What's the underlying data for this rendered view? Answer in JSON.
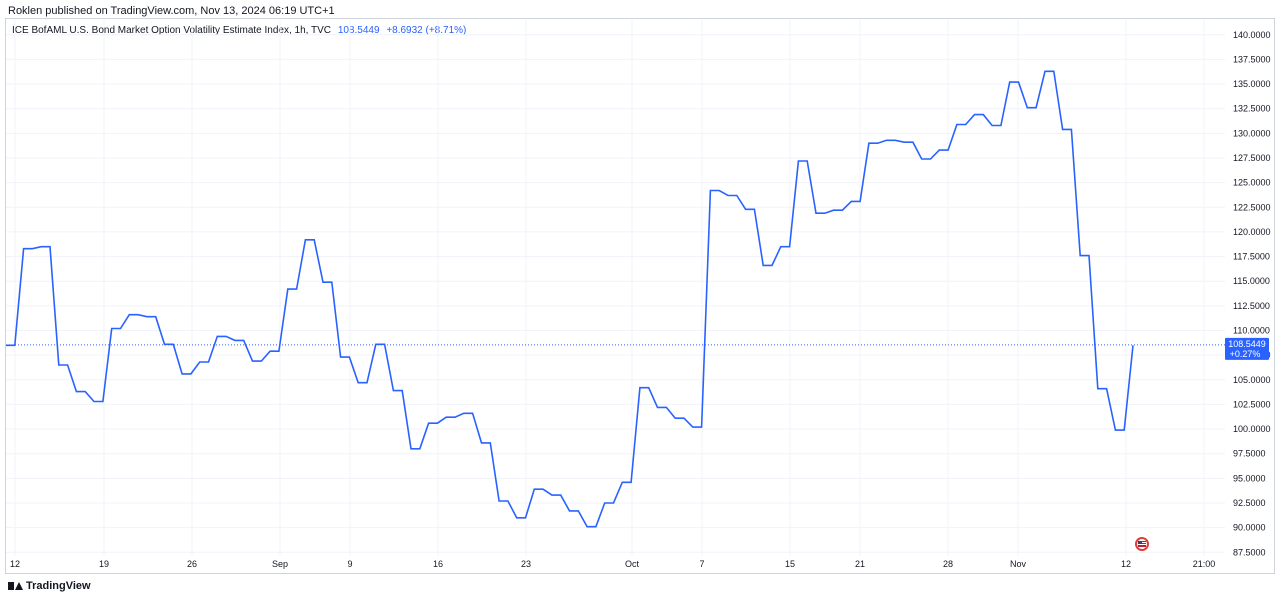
{
  "header": {
    "publisher": "Roklen published on TradingView.com, Nov 13, 2024 06:19 UTC+1"
  },
  "legend": {
    "title": "ICE BofAML U.S. Bond Market Option Volatility Estimate Index, 1h, TVC",
    "value": "108.5449",
    "change": "+8.6932 (+8.71%)"
  },
  "price_label": {
    "value": "108.5449",
    "change": "+0.27%"
  },
  "footer": {
    "brand": "TradingView"
  },
  "colors": {
    "line": "#2962ff",
    "grid": "#f0f3fa",
    "axis_text": "#131722"
  },
  "chart_data": {
    "type": "line",
    "title": "ICE BofAML U.S. Bond Market Option Volatility Estimate Index, 1h, TVC",
    "ylim": [
      85.5,
      141.5
    ],
    "y_ticks": [
      "140.0000",
      "137.5000",
      "135.0000",
      "132.5000",
      "130.0000",
      "127.5000",
      "125.0000",
      "122.5000",
      "120.0000",
      "117.5000",
      "115.0000",
      "112.5000",
      "110.0000",
      "107.5000",
      "105.0000",
      "102.5000",
      "100.0000",
      "97.5000",
      "95.0000",
      "92.5000",
      "90.0000",
      "87.5000"
    ],
    "x_ticks": [
      "12",
      "19",
      "26",
      "Sep",
      "9",
      "16",
      "23",
      "Oct",
      "7",
      "15",
      "21",
      "28",
      "Nov",
      "12",
      "21:00"
    ],
    "last_value": 108.5449,
    "grid": true,
    "series": [
      {
        "values": [
          108.5,
          108.5,
          118.3,
          118.3,
          118.5,
          118.5,
          106.5,
          106.5,
          103.8,
          103.8,
          102.8,
          102.8,
          110.2,
          110.2,
          111.6,
          111.6,
          111.4,
          111.4,
          108.6,
          108.6,
          105.6,
          105.6,
          106.8,
          106.8,
          109.4,
          109.4,
          109.0,
          109.0,
          106.9,
          106.9,
          107.9,
          107.9,
          114.2,
          114.2,
          119.2,
          119.2,
          114.9,
          114.9,
          107.3,
          107.3,
          104.7,
          104.7,
          108.6,
          108.6,
          103.9,
          103.9,
          98.0,
          98.0,
          100.6,
          100.6,
          101.2,
          101.2,
          101.6,
          101.6,
          98.6,
          98.6,
          92.7,
          92.7,
          91.0,
          91.0,
          93.9,
          93.9,
          93.3,
          93.3,
          91.7,
          91.7,
          90.1,
          90.1,
          92.5,
          92.5,
          94.6,
          94.6,
          104.2,
          104.2,
          102.2,
          102.2,
          101.1,
          101.1,
          100.2,
          100.2,
          124.2,
          124.2,
          123.7,
          123.7,
          122.3,
          122.3,
          116.6,
          116.6,
          118.5,
          118.5,
          127.2,
          127.2,
          121.9,
          121.9,
          122.2,
          122.2,
          123.1,
          123.1,
          129.0,
          129.0,
          129.3,
          129.3,
          129.1,
          129.1,
          127.4,
          127.4,
          128.3,
          128.3,
          130.9,
          130.9,
          131.9,
          131.9,
          130.8,
          130.8,
          135.2,
          135.2,
          132.6,
          132.6,
          136.3,
          136.3,
          130.4,
          130.4,
          117.6,
          117.6,
          104.1,
          104.1,
          99.9,
          99.9,
          108.5
        ]
      }
    ]
  }
}
